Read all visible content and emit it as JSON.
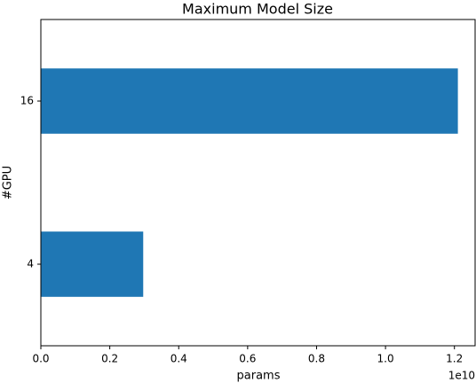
{
  "chart_data": {
    "type": "barh",
    "title": "Maximum Model Size",
    "categories": [
      "4",
      "16"
    ],
    "values": [
      2970000000,
      12100000000
    ],
    "color": "#1f77b4",
    "xlabel": "params",
    "ylabel": "#GPU",
    "x_offset_label": "1e10",
    "xlim": [
      0,
      12600000000
    ],
    "xticks": [
      {
        "value": 0,
        "label": "0.0"
      },
      {
        "value": 2000000000,
        "label": "0.2"
      },
      {
        "value": 4000000000,
        "label": "0.4"
      },
      {
        "value": 6000000000,
        "label": "0.6"
      },
      {
        "value": 8000000000,
        "label": "0.8"
      },
      {
        "value": 10000000000,
        "label": "1.0"
      },
      {
        "value": 12000000000,
        "label": "1.2"
      }
    ],
    "grid": false
  }
}
